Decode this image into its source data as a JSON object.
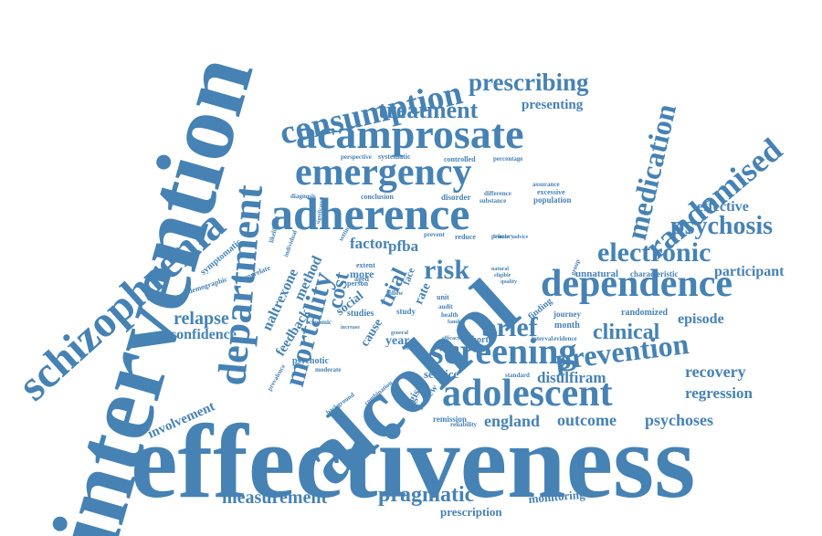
{
  "word_color": "#4682b4",
  "words": [
    {
      "text": "effectiveness",
      "size": 120
    },
    {
      "text": "intervention",
      "size": 110
    },
    {
      "text": "alcohol",
      "size": 92
    },
    {
      "text": "schizophrenia",
      "size": 50
    },
    {
      "text": "adherence",
      "size": 50
    },
    {
      "text": "acamprosate",
      "size": 46
    },
    {
      "text": "department",
      "size": 44
    },
    {
      "text": "emergency",
      "size": 42
    },
    {
      "text": "dependence",
      "size": 42
    },
    {
      "text": "adolescent",
      "size": 42
    },
    {
      "text": "screening",
      "size": 40
    },
    {
      "text": "consumption",
      "size": 38
    },
    {
      "text": "randomised",
      "size": 36
    },
    {
      "text": "mortality",
      "size": 34
    },
    {
      "text": "medication",
      "size": 32
    },
    {
      "text": "prevention",
      "size": 32
    },
    {
      "text": "electronic",
      "size": 30
    },
    {
      "text": "psychosis",
      "size": 28
    },
    {
      "text": "prescribing",
      "size": 28
    },
    {
      "text": "treatment",
      "size": 26
    },
    {
      "text": "brief",
      "size": 30
    },
    {
      "text": "risk",
      "size": 30
    },
    {
      "text": "clinical",
      "size": 24
    },
    {
      "text": "pragmatic",
      "size": 24
    },
    {
      "text": "cost",
      "size": 24
    },
    {
      "text": "trial",
      "size": 24
    },
    {
      "text": "measurement",
      "size": 20
    },
    {
      "text": "relapse",
      "size": 20
    },
    {
      "text": "recovery",
      "size": 18
    },
    {
      "text": "regression",
      "size": 17
    },
    {
      "text": "outcome",
      "size": 18
    },
    {
      "text": "england",
      "size": 18
    },
    {
      "text": "psychoses",
      "size": 18
    },
    {
      "text": "disulfiram",
      "size": 17
    },
    {
      "text": "participant",
      "size": 16
    },
    {
      "text": "episode",
      "size": 16
    },
    {
      "text": "effective",
      "size": 16
    },
    {
      "text": "confidence",
      "size": 16
    },
    {
      "text": "involvement",
      "size": 15
    },
    {
      "text": "naltrexone",
      "size": 16
    },
    {
      "text": "feedback",
      "size": 15
    },
    {
      "text": "method",
      "size": 16
    },
    {
      "text": "factor",
      "size": 17
    },
    {
      "text": "pfba",
      "size": 17
    },
    {
      "text": "presenting",
      "size": 15
    },
    {
      "text": "service",
      "size": 13
    },
    {
      "text": "monitoring",
      "size": 13
    },
    {
      "text": "prescription",
      "size": 13
    },
    {
      "text": "social",
      "size": 14
    },
    {
      "text": "cause",
      "size": 14
    },
    {
      "text": "year",
      "size": 14
    },
    {
      "text": "more",
      "size": 12
    },
    {
      "text": "rate",
      "size": 14
    },
    {
      "text": "face",
      "size": 11
    },
    {
      "text": "logistic",
      "size": 12
    },
    {
      "text": "review",
      "size": 11
    },
    {
      "text": "psychotic",
      "size": 10
    },
    {
      "text": "studies",
      "size": 10
    },
    {
      "text": "unnatural",
      "size": 11
    },
    {
      "text": "characteristic",
      "size": 9
    },
    {
      "text": "randomized",
      "size": 10
    },
    {
      "text": "month",
      "size": 10
    },
    {
      "text": "journey",
      "size": 9
    },
    {
      "text": "finding",
      "size": 10
    },
    {
      "text": "cohort",
      "size": 10
    },
    {
      "text": "remission",
      "size": 9
    },
    {
      "text": "symptomatic",
      "size": 10
    },
    {
      "text": "demographic",
      "size": 8
    },
    {
      "text": "correlate",
      "size": 8
    },
    {
      "text": "likelihood",
      "size": 7
    },
    {
      "text": "individual",
      "size": 7
    },
    {
      "text": "diagnosis",
      "size": 7
    },
    {
      "text": "perspective",
      "size": 7
    },
    {
      "text": "systematic",
      "size": 8
    },
    {
      "text": "controlled",
      "size": 8
    },
    {
      "text": "percentage",
      "size": 7
    },
    {
      "text": "conclusion",
      "size": 8
    },
    {
      "text": "disorder",
      "size": 9
    },
    {
      "text": "difference",
      "size": 7
    },
    {
      "text": "substance",
      "size": 7
    },
    {
      "text": "assurance",
      "size": 7
    },
    {
      "text": "excessive",
      "size": 8
    },
    {
      "text": "population",
      "size": 9
    },
    {
      "text": "prevent",
      "size": 7
    },
    {
      "text": "reduce",
      "size": 8
    },
    {
      "text": "primary",
      "size": 7
    },
    {
      "text": "extent",
      "size": 8
    },
    {
      "text": "aged",
      "size": 8
    },
    {
      "text": "follow",
      "size": 7
    },
    {
      "text": "person",
      "size": 8
    },
    {
      "text": "health",
      "size": 7
    },
    {
      "text": "unit",
      "size": 8
    },
    {
      "text": "audit",
      "size": 7
    },
    {
      "text": "study",
      "size": 9
    },
    {
      "text": "weekly",
      "size": 7
    },
    {
      "text": "moderate",
      "size": 7
    },
    {
      "text": "economic",
      "size": 7
    },
    {
      "text": "background",
      "size": 7
    },
    {
      "text": "combination",
      "size": 7
    },
    {
      "text": "prevalence",
      "size": 7
    },
    {
      "text": "standard",
      "size": 7
    },
    {
      "text": "reliability",
      "size": 7
    },
    {
      "text": "interval",
      "size": 7
    },
    {
      "text": "evidence",
      "size": 7
    },
    {
      "text": "group",
      "size": 7
    },
    {
      "text": "efficacy",
      "size": 6
    },
    {
      "text": "general",
      "size": 6
    },
    {
      "text": "increase",
      "size": 6
    },
    {
      "text": "setting",
      "size": 7
    },
    {
      "text": "significance",
      "size": 6
    },
    {
      "text": "natural",
      "size": 6
    },
    {
      "text": "quality",
      "size": 6
    },
    {
      "text": "eligible",
      "size": 6
    },
    {
      "text": "female",
      "size": 6
    },
    {
      "text": "advice",
      "size": 6
    },
    {
      "text": "family",
      "size": 6
    }
  ]
}
